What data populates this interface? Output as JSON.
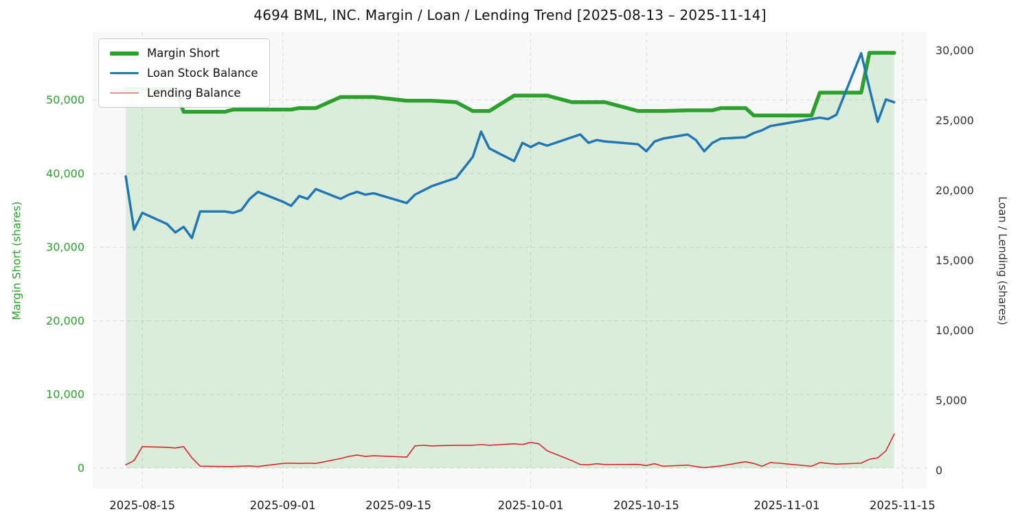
{
  "title": "4694 BML, INC. Margin / Loan / Lending Trend [2025-08-13 – 2025-11-14]",
  "chart_data": {
    "type": "line",
    "title": "4694 BML, INC. Margin / Loan / Lending Trend [2025-08-13 – 2025-11-14]",
    "plot_bg": "#f8f8f8",
    "grid_color": "#d8d8d8",
    "grid": true,
    "legend_position": "top-left",
    "x": [
      "2025-08-13",
      "2025-08-14",
      "2025-08-15",
      "2025-08-18",
      "2025-08-19",
      "2025-08-20",
      "2025-08-21",
      "2025-08-22",
      "2025-08-25",
      "2025-08-26",
      "2025-08-27",
      "2025-08-28",
      "2025-08-29",
      "2025-09-01",
      "2025-09-02",
      "2025-09-03",
      "2025-09-04",
      "2025-09-05",
      "2025-09-08",
      "2025-09-09",
      "2025-09-10",
      "2025-09-11",
      "2025-09-12",
      "2025-09-16",
      "2025-09-17",
      "2025-09-18",
      "2025-09-19",
      "2025-09-22",
      "2025-09-24",
      "2025-09-25",
      "2025-09-26",
      "2025-09-29",
      "2025-09-30",
      "2025-10-01",
      "2025-10-02",
      "2025-10-03",
      "2025-10-06",
      "2025-10-07",
      "2025-10-08",
      "2025-10-09",
      "2025-10-10",
      "2025-10-14",
      "2025-10-15",
      "2025-10-16",
      "2025-10-17",
      "2025-10-20",
      "2025-10-21",
      "2025-10-22",
      "2025-10-23",
      "2025-10-24",
      "2025-10-27",
      "2025-10-28",
      "2025-10-29",
      "2025-10-30",
      "2025-10-31",
      "2025-11-04",
      "2025-11-05",
      "2025-11-06",
      "2025-11-07",
      "2025-11-10",
      "2025-11-11",
      "2025-11-12",
      "2025-11-13",
      "2025-11-14"
    ],
    "series": [
      {
        "id": "margin-short",
        "name": "Margin Short",
        "axis": "left",
        "color": "#2ca02c",
        "fill_color": "rgba(44,160,44,0.14)",
        "width": 5.5,
        "values": [
          51500,
          51500,
          51500,
          51500,
          51500,
          48400,
          48400,
          48400,
          48400,
          48700,
          48700,
          48700,
          48700,
          48700,
          48700,
          48900,
          48900,
          48900,
          50400,
          50400,
          50400,
          50400,
          50400,
          49900,
          49900,
          49900,
          49900,
          49700,
          48500,
          48500,
          48500,
          50600,
          50600,
          50600,
          50600,
          50600,
          49700,
          49700,
          49700,
          49700,
          49700,
          48500,
          48500,
          48500,
          48500,
          48600,
          48600,
          48600,
          48600,
          48900,
          48900,
          47900,
          47900,
          47900,
          47900,
          47900,
          51000,
          51000,
          51000,
          51000,
          56400,
          56400,
          56400,
          56400
        ]
      },
      {
        "id": "loan-stock-balance",
        "name": "Loan Stock Balance",
        "axis": "right",
        "color": "#1f77b4",
        "width": 3.5,
        "values": [
          21000,
          17200,
          18400,
          17600,
          17000,
          17400,
          16600,
          18500,
          18500,
          18400,
          18600,
          19400,
          19900,
          19200,
          18900,
          19600,
          19400,
          20100,
          19400,
          19700,
          19900,
          19700,
          19800,
          19100,
          19700,
          20000,
          20300,
          20900,
          22400,
          24200,
          23000,
          22100,
          23400,
          23100,
          23400,
          23200,
          23800,
          24000,
          23400,
          23600,
          23500,
          23300,
          22800,
          23500,
          23700,
          24000,
          23600,
          22800,
          23400,
          23700,
          23800,
          24100,
          24300,
          24600,
          24700,
          25100,
          25200,
          25100,
          25400,
          29800,
          27300,
          24900,
          26500,
          26300
        ]
      },
      {
        "id": "lending-balance",
        "name": "Lending Balance",
        "axis": "right",
        "color": "#d62728",
        "width": 1.6,
        "values": [
          400,
          700,
          1700,
          1650,
          1600,
          1700,
          900,
          300,
          280,
          280,
          300,
          320,
          280,
          500,
          520,
          500,
          520,
          500,
          850,
          1000,
          1100,
          1000,
          1050,
          950,
          1750,
          1800,
          1750,
          1800,
          1800,
          1850,
          1800,
          1900,
          1850,
          2000,
          1900,
          1400,
          700,
          420,
          400,
          480,
          420,
          430,
          350,
          480,
          300,
          380,
          280,
          200,
          260,
          320,
          620,
          500,
          300,
          560,
          520,
          300,
          560,
          500,
          450,
          520,
          800,
          900,
          1400,
          2600
        ]
      }
    ],
    "left_axis": {
      "label": "Margin Short (shares)",
      "color": "#2ca02c",
      "ticks": [
        0,
        10000,
        20000,
        30000,
        40000,
        50000
      ],
      "tick_labels": [
        "0",
        "10,000",
        "20,000",
        "30,000",
        "40,000",
        "50,000"
      ],
      "lim": [
        -2800,
        59200
      ]
    },
    "right_axis": {
      "label": "Loan / Lending (shares)",
      "color": "#333333",
      "ticks": [
        0,
        5000,
        10000,
        15000,
        20000,
        25000,
        30000
      ],
      "tick_labels": [
        "0",
        "5,000",
        "10,000",
        "15,000",
        "20,000",
        "25,000",
        "30,000"
      ],
      "lim": [
        -1300,
        31300
      ]
    },
    "x_axis": {
      "ticks": [
        "2025-08-15",
        "2025-09-01",
        "2025-09-15",
        "2025-10-01",
        "2025-10-15",
        "2025-11-01",
        "2025-11-15"
      ],
      "tick_labels": [
        "2025-08-15",
        "2025-09-01",
        "2025-09-15",
        "2025-10-01",
        "2025-10-15",
        "2025-11-01",
        "2025-11-15"
      ],
      "tick_color": "#1a1a1a",
      "lim": [
        "2025-08-09",
        "2025-11-18"
      ]
    }
  }
}
